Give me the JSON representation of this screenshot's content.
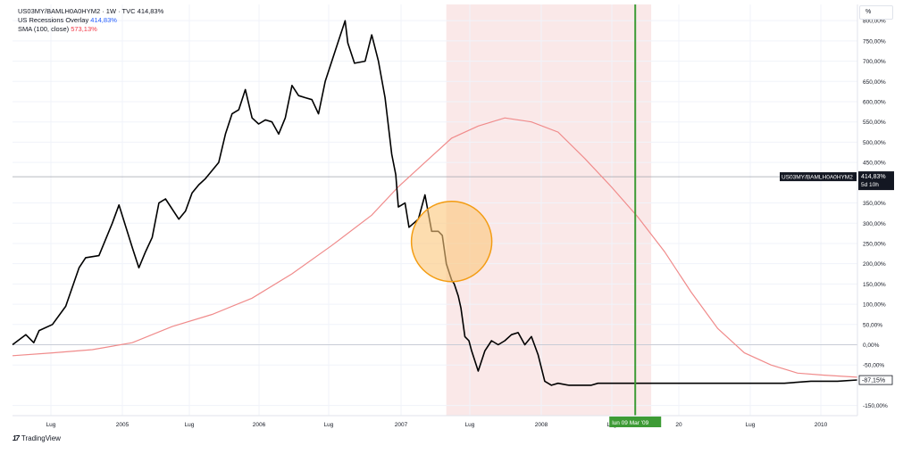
{
  "legend": {
    "title": "US03MY/BAMLH0A0HYM2 · 1W · TVC",
    "title_value": "414,83%",
    "overlay_label": "US Recessions Overlay",
    "overlay_value": "414,83%",
    "sma_label": "SMA (100, close)",
    "sma_value": "573,13%"
  },
  "scale_mode": "%",
  "brand": "TradingView",
  "colors": {
    "price_line": "#000000",
    "sma_line": "#f08b8b",
    "recession_band": "#f9e2e2",
    "vertical_marker": "#3d9b35",
    "highlight_fill": "#fbc67a",
    "highlight_stroke": "#f39c12",
    "label_bg": "#131722"
  },
  "chart_data": {
    "type": "line",
    "x_tick_labels": [
      "Lug",
      "2005",
      "Lug",
      "2006",
      "Lug",
      "2007",
      "Lug",
      "2008",
      "Lug",
      "20",
      "Lug",
      "2010"
    ],
    "y_tick_labels": [
      "800,00%",
      "750,00%",
      "700,00%",
      "650,00%",
      "600,00%",
      "550,00%",
      "500,00%",
      "450,00%",
      "350,00%",
      "300,00%",
      "250,00%",
      "200,00%",
      "150,00%",
      "100,00%",
      "50,00%",
      "0,00%",
      "-50,00%",
      "-150,00%"
    ],
    "y_tick_values": [
      800,
      750,
      700,
      650,
      600,
      550,
      500,
      450,
      350,
      300,
      250,
      200,
      150,
      100,
      50,
      0,
      -50,
      -150
    ],
    "ylim": [
      -175,
      840
    ],
    "xlim": [
      2004.2,
      2010.55
    ],
    "grid": true,
    "series": [
      {
        "name": "US03MY/BAMLH0A0HYM2",
        "x": [
          2004.2,
          2004.3,
          2004.36,
          2004.4,
          2004.5,
          2004.6,
          2004.7,
          2004.75,
          2004.85,
          2004.95,
          2005.0,
          2005.1,
          2005.15,
          2005.2,
          2005.25,
          2005.3,
          2005.35,
          2005.45,
          2005.5,
          2005.55,
          2005.6,
          2005.65,
          2005.75,
          2005.8,
          2005.85,
          2005.9,
          2005.95,
          2006.0,
          2006.05,
          2006.1,
          2006.15,
          2006.2,
          2006.25,
          2006.3,
          2006.35,
          2006.4,
          2006.45,
          2006.5,
          2006.55,
          2006.6,
          2006.7,
          2006.72,
          2006.77,
          2006.85,
          2006.9,
          2006.95,
          2007.0,
          2007.05,
          2007.08,
          2007.1,
          2007.15,
          2007.18,
          2007.25,
          2007.3,
          2007.35,
          2007.4,
          2007.43,
          2007.46,
          2007.5,
          2007.52,
          2007.55,
          2007.57,
          2007.6,
          2007.63,
          2007.65,
          2007.7,
          2007.75,
          2007.8,
          2007.85,
          2007.9,
          2007.95,
          2008.0,
          2008.05,
          2008.1,
          2008.15,
          2008.2,
          2008.25,
          2008.3,
          2008.38,
          2008.45,
          2008.5,
          2008.55,
          2008.6,
          2008.7,
          2008.8,
          2008.9,
          2009.0,
          2009.2,
          2009.5,
          2009.8,
          2010.0,
          2010.2,
          2010.4,
          2010.55
        ],
        "y": [
          0,
          25,
          5,
          35,
          50,
          95,
          190,
          215,
          220,
          300,
          345,
          240,
          190,
          230,
          265,
          350,
          360,
          310,
          330,
          375,
          395,
          410,
          450,
          520,
          570,
          580,
          630,
          560,
          545,
          555,
          550,
          520,
          560,
          640,
          615,
          610,
          605,
          570,
          650,
          700,
          800,
          745,
          695,
          700,
          765,
          700,
          610,
          470,
          420,
          340,
          350,
          290,
          310,
          370,
          280,
          280,
          270,
          200,
          160,
          150,
          120,
          90,
          20,
          10,
          -15,
          -65,
          -15,
          10,
          0,
          10,
          25,
          30,
          0,
          20,
          -25,
          -90,
          -100,
          -95,
          -100,
          -100,
          -100,
          -100,
          -95,
          -95,
          -95,
          -95,
          -95,
          -95,
          -95,
          -95,
          -95,
          -90,
          -90,
          -87
        ],
        "color": "#000000"
      },
      {
        "name": "SMA (100, close)",
        "x": [
          2004.2,
          2004.5,
          2004.8,
          2005.1,
          2005.4,
          2005.7,
          2006.0,
          2006.3,
          2006.6,
          2006.9,
          2007.1,
          2007.3,
          2007.5,
          2007.7,
          2007.9,
          2008.1,
          2008.3,
          2008.5,
          2008.7,
          2008.9,
          2009.1,
          2009.3,
          2009.5,
          2009.7,
          2009.9,
          2010.1,
          2010.3,
          2010.55
        ],
        "y": [
          -27,
          -20,
          -12,
          5,
          45,
          75,
          115,
          175,
          245,
          320,
          390,
          450,
          510,
          540,
          560,
          550,
          525,
          460,
          390,
          315,
          230,
          130,
          40,
          -20,
          -50,
          -70,
          -75,
          -80
        ],
        "color": "#f08b8b"
      }
    ],
    "recession_band": {
      "from": 2007.46,
      "to": 2009.0,
      "label": "US Recessions Overlay"
    },
    "vertical_marker": {
      "x": 2008.88,
      "label": "lun 09 Mar '09"
    },
    "current_price_label": {
      "value": 414.83,
      "name": "US03MY/BAMLH0A0HYM2",
      "text": "414,83%",
      "sub": "5d 10h"
    },
    "end_label": {
      "value": -87.15,
      "text": "-87,15%"
    },
    "highlight_circle": {
      "x": 2007.5,
      "y": 255,
      "label": ""
    }
  }
}
